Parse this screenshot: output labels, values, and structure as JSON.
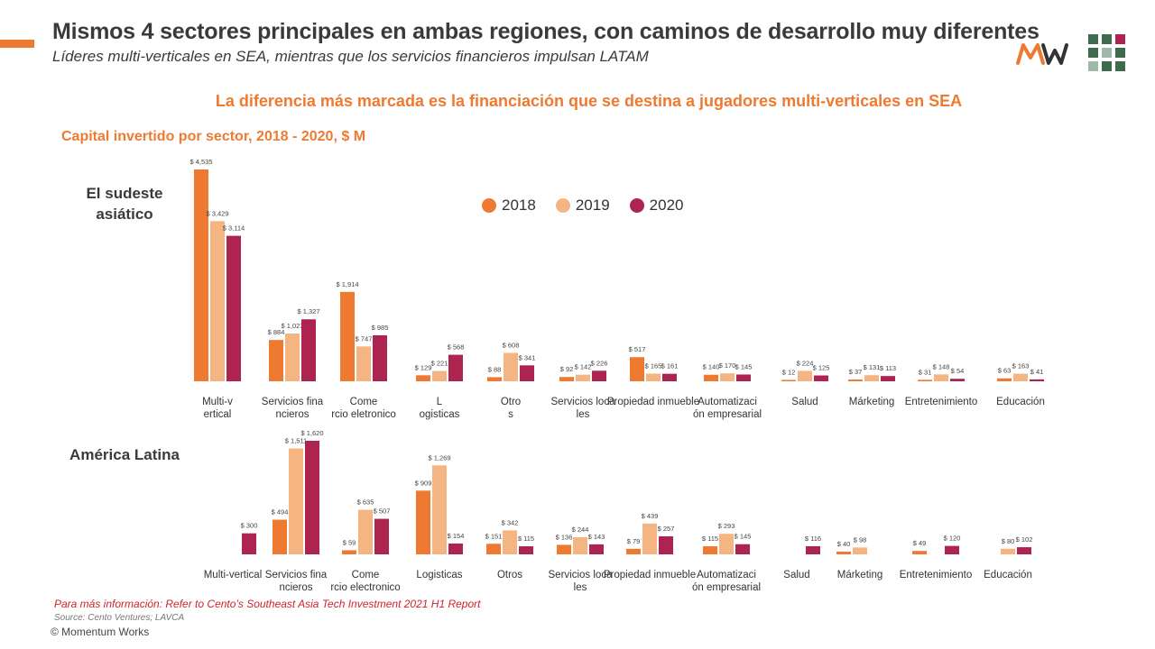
{
  "header": {
    "title": "Mismos 4 sectores principales en ambas regiones, con caminos de desarrollo muy diferentes",
    "subtitle": "Líderes multi-verticales en SEA, mientras que los servicios financieros impulsan LATAM",
    "headline": "La diferencia más marcada es la financiación que se destina a jugadores multi-verticales en SEA"
  },
  "colors": {
    "accent": "#ee7a32",
    "c2018": "#ee7a32",
    "c2019": "#f5b583",
    "c2020": "#ad2450"
  },
  "logo": {
    "icon": "momentum-works-logo",
    "dot_colors": [
      "#3e6b4f",
      "#3e6b4f",
      "#ad2450",
      "#3e6b4f",
      "#9fb8a8",
      "#3e6b4f",
      "#9fb8a8",
      "#3e6b4f",
      "#3e6b4f"
    ]
  },
  "chart_data": [
    {
      "type": "bar",
      "title": "Capital invertido por sector, 2018 - 2020,  $ M",
      "region": "El sudeste asiático",
      "categories": [
        "Multi-vertical",
        "Servicios financieros",
        "Comercio eletronico",
        "Logisticas",
        "Otros",
        "Servicios locales",
        "Propiedad inmueble",
        "Automatización empresarial",
        "Salud",
        "Márketing",
        "Entretenimiento",
        "Educación"
      ],
      "series": [
        {
          "name": "2018",
          "values": [
            4535,
            884,
            1914,
            129,
            88,
            92,
            517,
            140,
            12,
            37,
            31,
            63
          ]
        },
        {
          "name": "2019",
          "values": [
            3429,
            1023,
            747,
            221,
            608,
            142,
            165,
            170,
            224,
            131,
            148,
            163
          ]
        },
        {
          "name": "2020",
          "values": [
            3114,
            1327,
            985,
            568,
            341,
            226,
            161,
            145,
            125,
            113,
            54,
            41
          ]
        }
      ],
      "labels": [
        [
          "$ 4,535",
          "$ 884",
          "$ 1,914",
          "$ 129",
          "$ 88",
          "$ 92",
          "$ 517",
          "$ 140",
          "$ 12",
          "$ 37",
          "$ 31",
          "$ 63"
        ],
        [
          "$ 3,429",
          "$ 1,023",
          "$ 747",
          "$ 221",
          "$ 608",
          "$ 142",
          "$ 165",
          "$ 170",
          "$ 224",
          "$ 131",
          "$ 148",
          "$ 163"
        ],
        [
          "$ 3,114",
          "$ 1,327",
          "$ 985",
          "$ 568",
          "$ 341",
          "$ 226",
          "$ 161",
          "$ 145",
          "$ 125",
          "$ 113",
          "$ 54",
          "$ 41"
        ]
      ],
      "legend": {
        "position": "top-center",
        "entries": [
          "2018",
          "2019",
          "2020"
        ]
      }
    },
    {
      "type": "bar",
      "region": "América Latina",
      "categories": [
        "Multi-vertical",
        "Servicios financieros",
        "Comercio electronico",
        "Logisticas",
        "Otros",
        "Servicios locales",
        "Propiedad inmueble",
        "Automatización empresarial",
        "Salud",
        "Márketing",
        "Entretenimiento",
        "Educación"
      ],
      "series": [
        {
          "name": "2018",
          "values": [
            null,
            494,
            59,
            909,
            151,
            136,
            79,
            115,
            null,
            40,
            49,
            null
          ]
        },
        {
          "name": "2019",
          "values": [
            null,
            1511,
            635,
            1269,
            342,
            244,
            439,
            293,
            null,
            98,
            null,
            80
          ]
        },
        {
          "name": "2020",
          "values": [
            300,
            1620,
            507,
            154,
            115,
            143,
            257,
            145,
            116,
            null,
            120,
            102
          ]
        }
      ],
      "labels": [
        [
          null,
          "$ 494",
          "$ 59",
          "$ 909",
          "$ 151",
          "$ 136",
          "$ 79",
          "$ 115",
          null,
          "$ 40",
          "$ 49",
          null
        ],
        [
          null,
          "$ 1,511",
          "$ 635",
          "$ 1,269",
          "$ 342",
          "$ 244",
          "$ 439",
          "$ 293",
          null,
          "$ 98",
          null,
          "$ 80"
        ],
        [
          "$ 300",
          "$ 1,620",
          "$ 507",
          "$ 154",
          "$ 115",
          "$ 143",
          "$ 257",
          "$ 145",
          "$ 116",
          null,
          "$ 120",
          "$ 102"
        ]
      ]
    }
  ],
  "footer": {
    "more_info": "Para más información: Refer to Cento’s Southeast Asia Tech Investment 2021 H1 Report",
    "source": "Source: Cento Ventures; LAVCA",
    "copyright": "© Momentum Works"
  }
}
